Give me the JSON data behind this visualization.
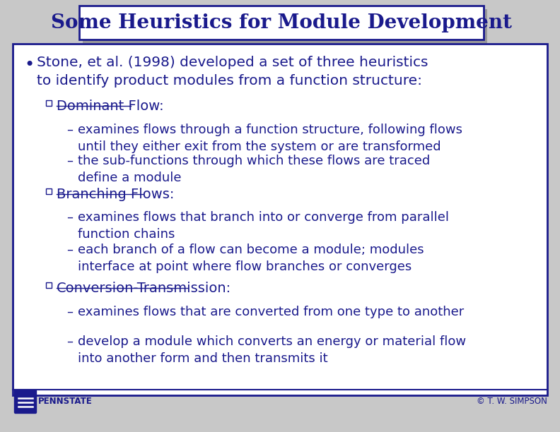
{
  "title": "Some Heuristics for Module Development",
  "title_color": "#1a1a8c",
  "title_fontsize": 20,
  "body_color": "#1a1a8c",
  "bg_color": "#ffffff",
  "slide_bg": "#c8c8c8",
  "border_color": "#1a1a8c",
  "bullet_main": "Stone, et al. (1998) developed a set of three heuristics\nto identify product modules from a function structure:",
  "sections": [
    {
      "header": "Dominant Flow",
      "sub_items": [
        "examines flows through a function structure, following flows\nuntil they either exit from the system or are transformed",
        "the sub-functions through which these flows are traced\ndefine a module"
      ]
    },
    {
      "header": "Branching Flows",
      "sub_items": [
        "examines flows that branch into or converge from parallel\nfunction chains",
        "each branch of a flow can become a module; modules\ninterface at point where flow branches or converges"
      ]
    },
    {
      "header": "Conversion-Transmission",
      "sub_items": [
        "examines flows that are converted from one type to another",
        "develop a module which converts an energy or material flow\ninto another form and then transmits it"
      ]
    }
  ],
  "footer_left": "PENNSTATE",
  "footer_right": "© T. W. SIMPSON",
  "footer_color": "#1a1a8c",
  "main_fontsize": 14.5,
  "section_fontsize": 14.0,
  "sub_fontsize": 13.0
}
